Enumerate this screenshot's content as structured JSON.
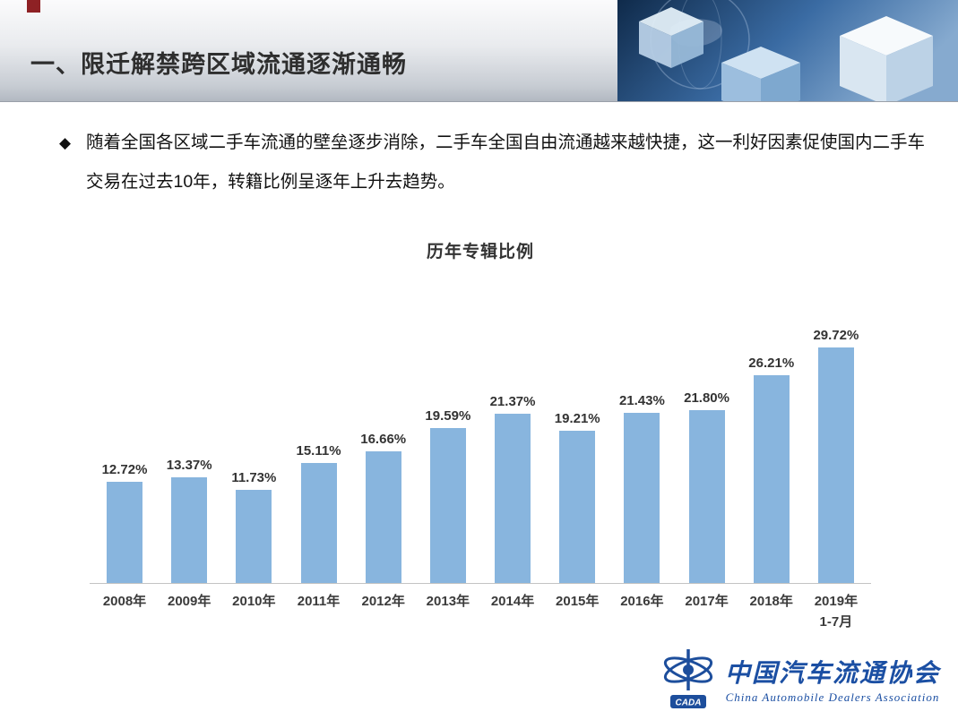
{
  "header": {
    "title": "一、限迁解禁跨区域流通逐渐通畅"
  },
  "bullet": {
    "marker": "◆",
    "text": "随着全国各区域二手车流通的壁垒逐步消除，二手车全国自由流通越来越快捷，这一利好因素促使国内二手车交易在过去10年，转籍比例呈逐年上升去趋势。"
  },
  "chart_data": {
    "type": "bar",
    "title": "历年专辑比例",
    "categories": [
      "2008年",
      "2009年",
      "2010年",
      "2011年",
      "2012年",
      "2013年",
      "2014年",
      "2015年",
      "2016年",
      "2017年",
      "2018年",
      "2019年\n1-7月"
    ],
    "values": [
      12.72,
      13.37,
      11.73,
      15.11,
      16.66,
      19.59,
      21.37,
      19.21,
      21.43,
      21.8,
      26.21,
      29.72
    ],
    "labels": [
      "12.72%",
      "13.37%",
      "11.73%",
      "15.11%",
      "16.66%",
      "19.59%",
      "21.37%",
      "19.21%",
      "21.43%",
      "21.80%",
      "26.21%",
      "29.72%"
    ],
    "bar_color": "#88b5de",
    "xlabel": "",
    "ylabel": "",
    "ylim": [
      0,
      32
    ],
    "grid": false,
    "legend": null
  },
  "footer": {
    "cn": "中国汽车流通协会",
    "en": "China Automobile Dealers Association",
    "emblem": "CADA"
  }
}
